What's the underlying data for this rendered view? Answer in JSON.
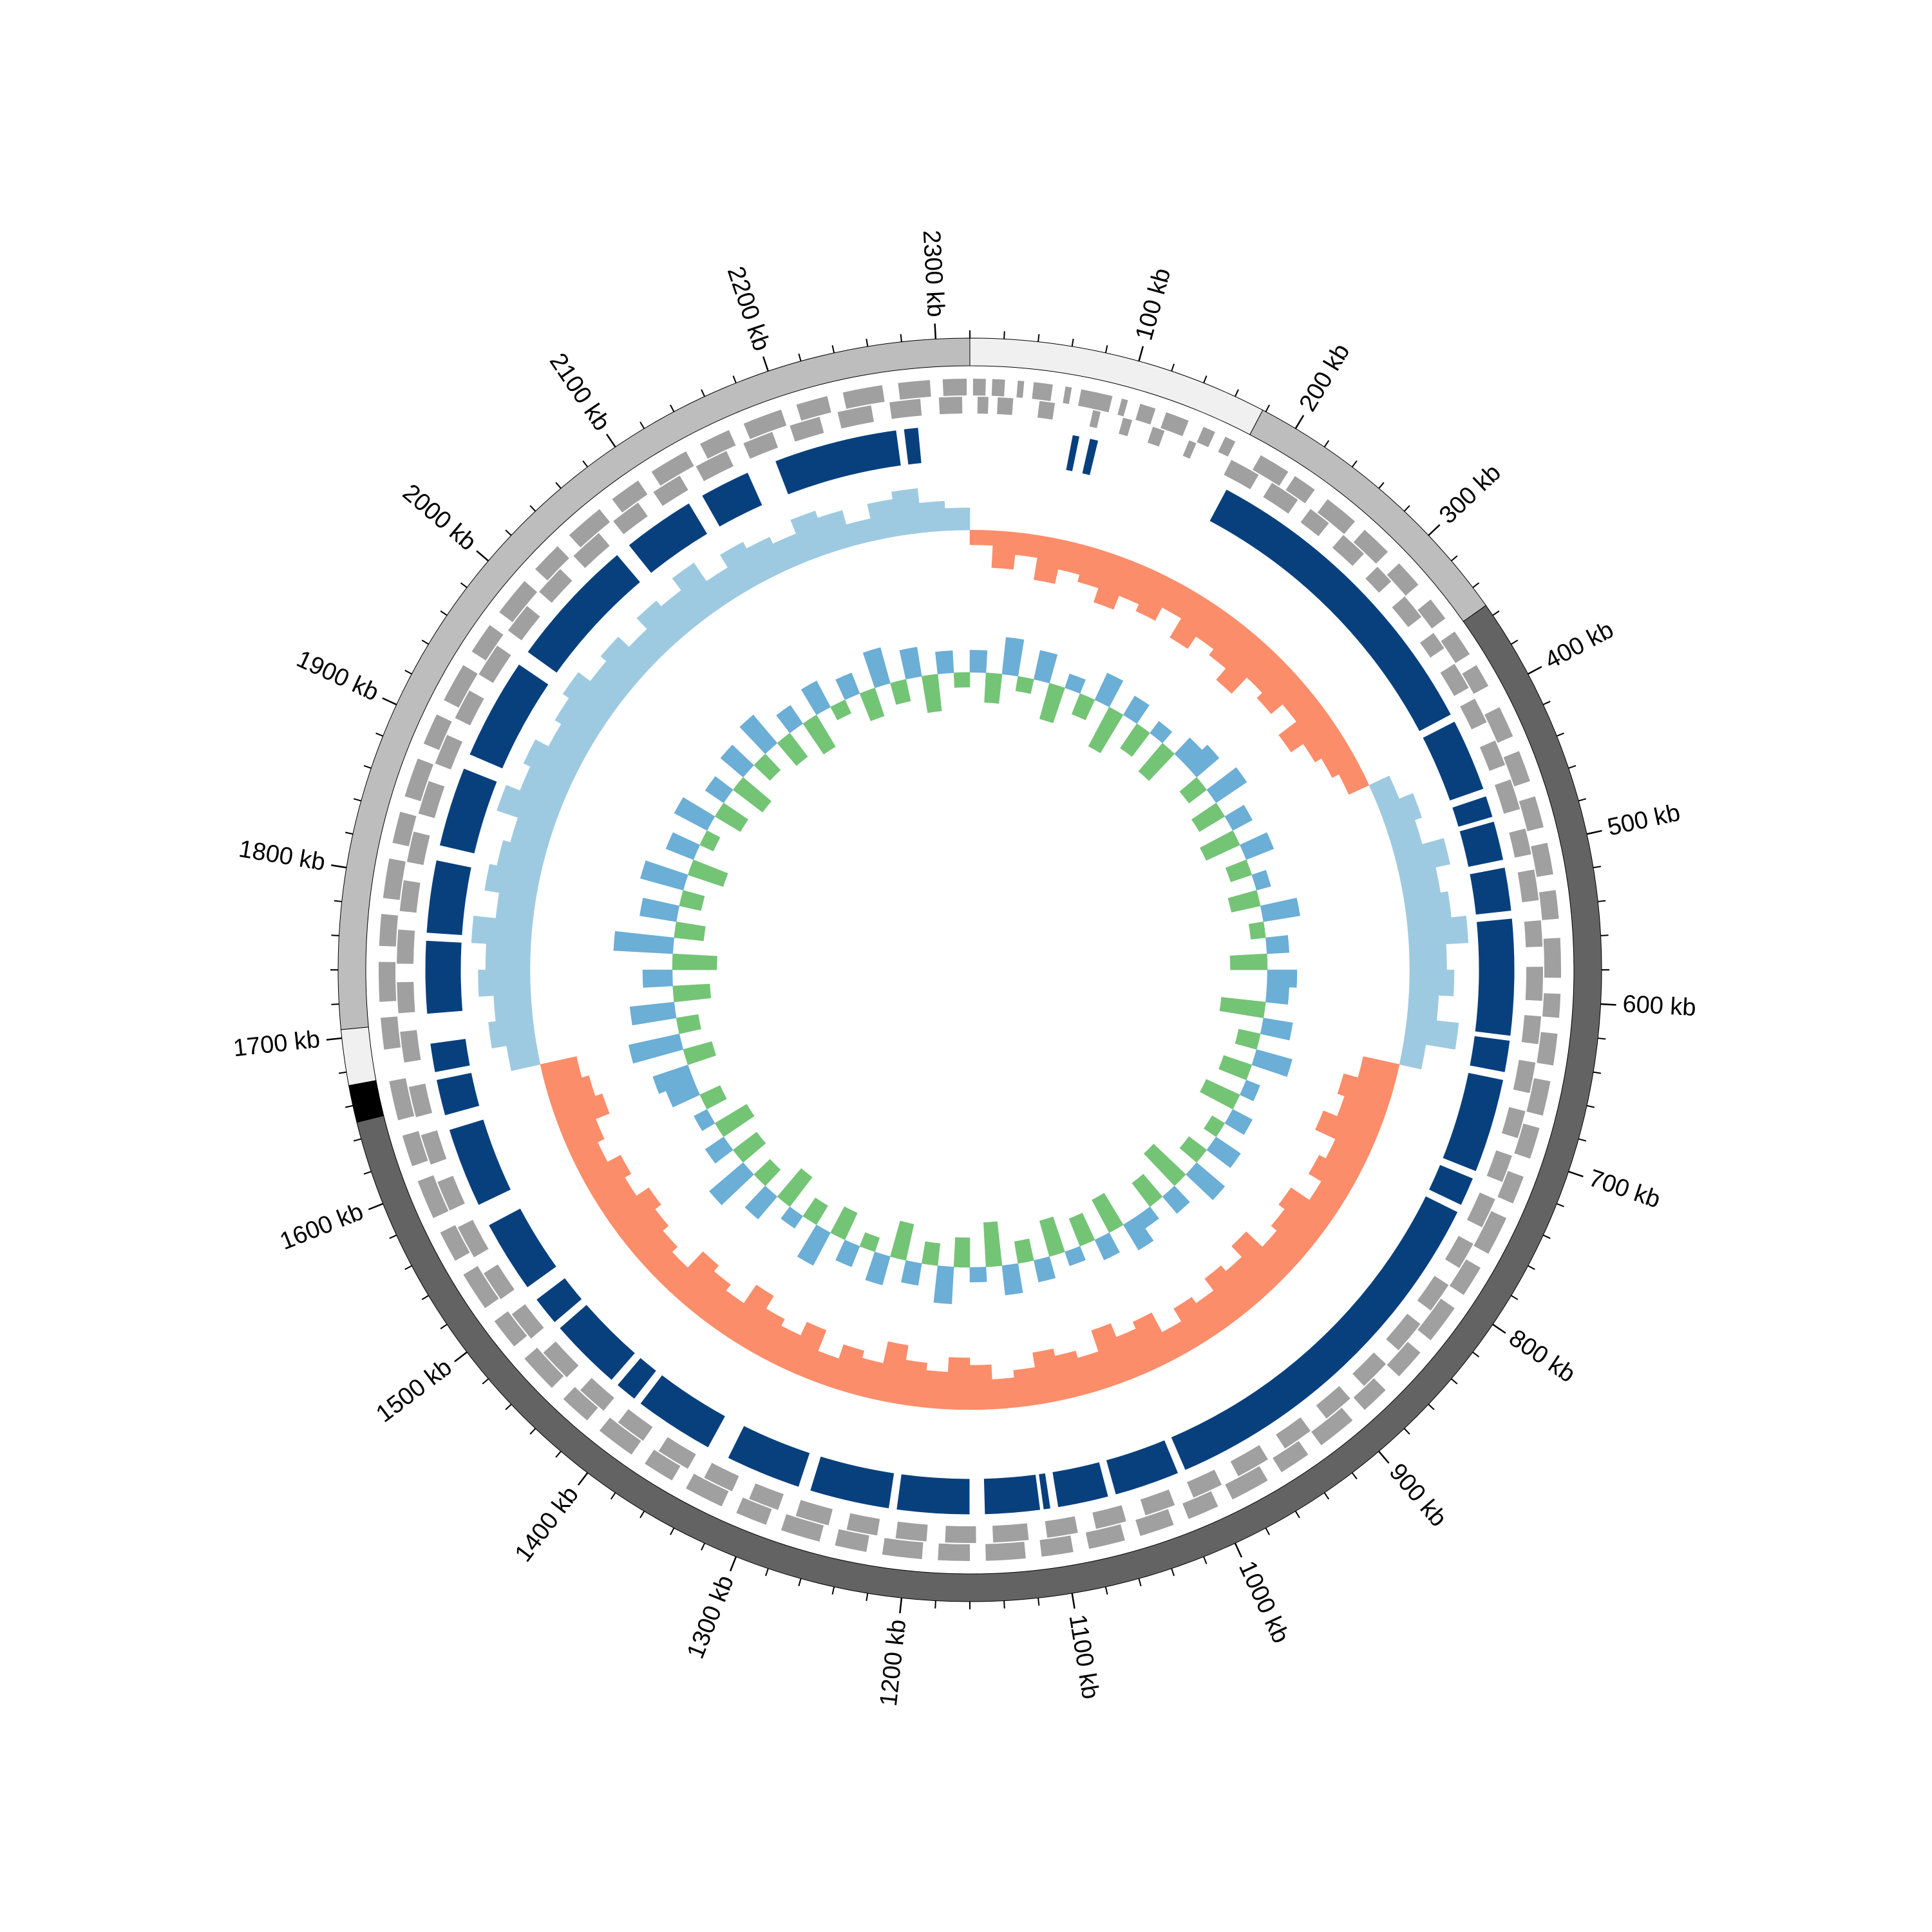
{
  "chart_data": {
    "type": "circular-genome",
    "xlim": [
      0,
      2320
    ],
    "xticks": [
      {
        "value": 100,
        "label": "100 kb"
      },
      {
        "value": 200,
        "label": "200 kb"
      },
      {
        "value": 300,
        "label": "300 kb"
      },
      {
        "value": 400,
        "label": "400 kb"
      },
      {
        "value": 500,
        "label": "500 kb"
      },
      {
        "value": 600,
        "label": "600 kb"
      },
      {
        "value": 700,
        "label": "700 kb"
      },
      {
        "value": 800,
        "label": "800 kb"
      },
      {
        "value": 900,
        "label": "900 kb"
      },
      {
        "value": 1000,
        "label": "1000 kb"
      },
      {
        "value": 1100,
        "label": "1100 kb"
      },
      {
        "value": 1200,
        "label": "1200 kb"
      },
      {
        "value": 1300,
        "label": "1300 kb"
      },
      {
        "value": 1400,
        "label": "1400 kb"
      },
      {
        "value": 1500,
        "label": "1500 kb"
      },
      {
        "value": 1600,
        "label": "1600 kb"
      },
      {
        "value": 1700,
        "label": "1700 kb"
      },
      {
        "value": 1800,
        "label": "1800 kb"
      },
      {
        "value": 1900,
        "label": "1900 kb"
      },
      {
        "value": 2000,
        "label": "2000 kb"
      },
      {
        "value": 2100,
        "label": "2100 kb"
      },
      {
        "value": 2200,
        "label": "2200 kb"
      },
      {
        "value": 2300,
        "label": "2300 kb"
      }
    ],
    "minor_ticks": [
      0,
      20,
      40,
      60,
      80,
      120,
      140,
      160,
      180,
      220,
      240,
      260,
      280,
      320,
      340,
      360,
      380,
      420,
      440,
      460,
      480,
      520,
      540,
      560,
      580,
      620,
      640,
      660,
      680,
      720,
      740,
      760,
      780,
      820,
      840,
      860,
      880,
      920,
      940,
      960,
      980,
      1020,
      1040,
      1060,
      1080,
      1120,
      1140,
      1160,
      1180,
      1220,
      1240,
      1260,
      1280,
      1320,
      1340,
      1360,
      1380,
      1420,
      1440,
      1460,
      1480,
      1520,
      1540,
      1560,
      1580,
      1620,
      1640,
      1660,
      1680,
      1720,
      1740,
      1760,
      1780,
      1820,
      1840,
      1860,
      1880,
      1920,
      1940,
      1960,
      1980,
      2020,
      2040,
      2060,
      2080,
      2120,
      2140,
      2160,
      2180,
      2220,
      2240,
      2260,
      2280
    ],
    "segments": [
      {
        "start": 0,
        "end": 178,
        "color": "#f0f0f0"
      },
      {
        "start": 178,
        "end": 353,
        "color": "#bdbdbd"
      },
      {
        "start": 353,
        "end": 1650,
        "color": "#636363"
      },
      {
        "start": 1650,
        "end": 1672,
        "color": "#000000"
      },
      {
        "start": 1672,
        "end": 1705,
        "color": "#f0f0f0"
      },
      {
        "start": 1705,
        "end": 2320,
        "color": "#bdbdbd"
      }
    ],
    "gene_color": "#a0a0a0",
    "genes_plus": [
      [
        2,
        10
      ],
      [
        14,
        22
      ],
      [
        30,
        34
      ],
      [
        40,
        52
      ],
      [
        60,
        64
      ],
      [
        70,
        90
      ],
      [
        96,
        100
      ],
      [
        108,
        118
      ],
      [
        125,
        140
      ],
      [
        150,
        158
      ],
      [
        165,
        172
      ],
      [
        190,
        210
      ],
      [
        215,
        230
      ],
      [
        240,
        262
      ],
      [
        270,
        290
      ],
      [
        300,
        318
      ],
      [
        330,
        345
      ],
      [
        355,
        372
      ],
      [
        380,
        395
      ],
      [
        410,
        430
      ],
      [
        440,
        460
      ],
      [
        470,
        490
      ],
      [
        500,
        520
      ],
      [
        530,
        548
      ],
      [
        560,
        585
      ],
      [
        595,
        610
      ],
      [
        620,
        640
      ],
      [
        650,
        672
      ],
      [
        680,
        700
      ],
      [
        712,
        730
      ],
      [
        740,
        765
      ],
      [
        775,
        795
      ],
      [
        805,
        830
      ],
      [
        840,
        860
      ],
      [
        872,
        890
      ],
      [
        900,
        925
      ],
      [
        935,
        955
      ],
      [
        965,
        990
      ],
      [
        1000,
        1020
      ],
      [
        1030,
        1052
      ],
      [
        1062,
        1085
      ],
      [
        1095,
        1115
      ],
      [
        1125,
        1150
      ],
      [
        1160,
        1180
      ],
      [
        1190,
        1215
      ],
      [
        1225,
        1245
      ],
      [
        1255,
        1280
      ],
      [
        1290,
        1310
      ],
      [
        1320,
        1345
      ],
      [
        1355,
        1375
      ],
      [
        1385,
        1410
      ],
      [
        1420,
        1440
      ],
      [
        1450,
        1475
      ],
      [
        1485,
        1505
      ],
      [
        1515,
        1540
      ],
      [
        1550,
        1570
      ],
      [
        1580,
        1605
      ],
      [
        1615,
        1635
      ],
      [
        1645,
        1670
      ],
      [
        1690,
        1710
      ],
      [
        1720,
        1745
      ],
      [
        1755,
        1775
      ],
      [
        1785,
        1810
      ],
      [
        1820,
        1840
      ],
      [
        1850,
        1875
      ],
      [
        1885,
        1905
      ],
      [
        1915,
        1940
      ],
      [
        1950,
        1970
      ],
      [
        1980,
        2005
      ],
      [
        2015,
        2035
      ],
      [
        2045,
        2070
      ],
      [
        2080,
        2100
      ],
      [
        2110,
        2135
      ],
      [
        2145,
        2165
      ],
      [
        2175,
        2200
      ],
      [
        2210,
        2230
      ],
      [
        2240,
        2265
      ],
      [
        2275,
        2295
      ],
      [
        2303,
        2318
      ]
    ],
    "genes_minus": [
      [
        5,
        12
      ],
      [
        18,
        28
      ],
      [
        45,
        55
      ],
      [
        80,
        85
      ],
      [
        100,
        106
      ],
      [
        120,
        128
      ],
      [
        145,
        150
      ],
      [
        175,
        195
      ],
      [
        205,
        225
      ],
      [
        235,
        250
      ],
      [
        262,
        280
      ],
      [
        292,
        305
      ],
      [
        318,
        335
      ],
      [
        348,
        360
      ],
      [
        372,
        390
      ],
      [
        398,
        415
      ],
      [
        428,
        445
      ],
      [
        455,
        475
      ],
      [
        488,
        505
      ],
      [
        515,
        535
      ],
      [
        548,
        565
      ],
      [
        578,
        600
      ],
      [
        610,
        628
      ],
      [
        640,
        660
      ],
      [
        672,
        690
      ],
      [
        702,
        720
      ],
      [
        732,
        752
      ],
      [
        764,
        782
      ],
      [
        795,
        815
      ],
      [
        826,
        848
      ],
      [
        860,
        880
      ],
      [
        892,
        912
      ],
      [
        925,
        945
      ],
      [
        958,
        980
      ],
      [
        992,
        1012
      ],
      [
        1025,
        1045
      ],
      [
        1058,
        1078
      ],
      [
        1090,
        1110
      ],
      [
        1122,
        1145
      ],
      [
        1156,
        1176
      ],
      [
        1188,
        1208
      ],
      [
        1220,
        1240
      ],
      [
        1252,
        1274
      ],
      [
        1286,
        1306
      ],
      [
        1318,
        1338
      ],
      [
        1350,
        1372
      ],
      [
        1384,
        1404
      ],
      [
        1416,
        1436
      ],
      [
        1448,
        1470
      ],
      [
        1482,
        1502
      ],
      [
        1514,
        1534
      ],
      [
        1546,
        1568
      ],
      [
        1580,
        1600
      ],
      [
        1612,
        1632
      ],
      [
        1644,
        1664
      ],
      [
        1680,
        1700
      ],
      [
        1712,
        1732
      ],
      [
        1744,
        1766
      ],
      [
        1778,
        1798
      ],
      [
        1810,
        1830
      ],
      [
        1842,
        1864
      ],
      [
        1876,
        1896
      ],
      [
        1908,
        1928
      ],
      [
        1940,
        1962
      ],
      [
        1974,
        1994
      ],
      [
        2006,
        2026
      ],
      [
        2038,
        2060
      ],
      [
        2072,
        2092
      ],
      [
        2104,
        2124
      ],
      [
        2136,
        2158
      ],
      [
        2170,
        2190
      ],
      [
        2202,
        2222
      ],
      [
        2234,
        2256
      ],
      [
        2268,
        2288
      ],
      [
        2300,
        2315
      ]
    ],
    "block_color": "#08407e",
    "blocks": [
      [
        70,
        75
      ],
      [
        82,
        88
      ],
      [
        181,
        400
      ],
      [
        405,
        455
      ],
      [
        460,
        475
      ],
      [
        478,
        505
      ],
      [
        510,
        540
      ],
      [
        545,
        625
      ],
      [
        628,
        650
      ],
      [
        655,
        720
      ],
      [
        725,
        745
      ],
      [
        750,
        1010
      ],
      [
        1015,
        1060
      ],
      [
        1065,
        1100
      ],
      [
        1105,
        1110
      ],
      [
        1112,
        1150
      ],
      [
        1160,
        1210
      ],
      [
        1215,
        1270
      ],
      [
        1278,
        1330
      ],
      [
        1345,
        1400
      ],
      [
        1405,
        1420
      ],
      [
        1425,
        1475
      ],
      [
        1480,
        1500
      ],
      [
        1510,
        1560
      ],
      [
        1575,
        1630
      ],
      [
        1640,
        1665
      ],
      [
        1670,
        1690
      ],
      [
        1710,
        1760
      ],
      [
        1765,
        1815
      ],
      [
        1825,
        1880
      ],
      [
        1890,
        1960
      ],
      [
        1970,
        2060
      ],
      [
        2070,
        2120
      ],
      [
        2130,
        2165
      ],
      [
        2185,
        2270
      ],
      [
        2275,
        2285
      ]
    ],
    "x": [
      0,
      20,
      40,
      60,
      80,
      100,
      120,
      140,
      160,
      180,
      200,
      220,
      240,
      260,
      280,
      300,
      320,
      340,
      360,
      380,
      400,
      420,
      440,
      460,
      480,
      500,
      520,
      540,
      560,
      580,
      600,
      620,
      640,
      660,
      680,
      700,
      720,
      740,
      760,
      780,
      800,
      820,
      840,
      860,
      880,
      900,
      920,
      940,
      960,
      980,
      1000,
      1020,
      1040,
      1060,
      1080,
      1100,
      1120,
      1140,
      1160,
      1180,
      1200,
      1220,
      1240,
      1260,
      1280,
      1300,
      1320,
      1340,
      1360,
      1380,
      1400,
      1420,
      1440,
      1460,
      1480,
      1500,
      1520,
      1540,
      1560,
      1580,
      1600,
      1620,
      1640,
      1660,
      1680,
      1700,
      1720,
      1740,
      1760,
      1780,
      1800,
      1820,
      1840,
      1860,
      1880,
      1900,
      1920,
      1940,
      1960,
      1980,
      2000,
      2020,
      2040,
      2060,
      2080,
      2100,
      2120,
      2140,
      2160,
      2180,
      2200,
      2220,
      2240,
      2260,
      2280,
      2300
    ],
    "ylim": [
      -0.1,
      0.1
    ],
    "tracks": [
      {
        "pos_color": "#9ecae1",
        "neg_color": "#fc8d6a",
        "values": [
          -0.02,
          -0.05,
          -0.03,
          -0.06,
          -0.04,
          -0.05,
          -0.07,
          -0.05,
          -0.06,
          -0.04,
          -0.07,
          -0.05,
          -0.06,
          -0.08,
          -0.05,
          -0.06,
          -0.04,
          -0.07,
          -0.05,
          -0.04,
          -0.03,
          0.03,
          0.05,
          0.04,
          0.07,
          0.05,
          0.06,
          0.08,
          0.05,
          0.06,
          0.04,
          0.07,
          0.03,
          -0.05,
          -0.07,
          -0.06,
          -0.08,
          -0.05,
          -0.06,
          -0.04,
          -0.07,
          -0.06,
          -0.05,
          -0.08,
          -0.06,
          -0.07,
          -0.05,
          -0.06,
          -0.04,
          -0.07,
          -0.06,
          -0.08,
          -0.05,
          -0.06,
          -0.07,
          -0.05,
          -0.04,
          -0.06,
          -0.07,
          -0.05,
          -0.06,
          -0.08,
          -0.05,
          -0.06,
          -0.04,
          -0.07,
          -0.05,
          -0.06,
          -0.08,
          -0.05,
          -0.06,
          -0.07,
          -0.04,
          -0.05,
          -0.06,
          -0.07,
          -0.05,
          -0.06,
          -0.04,
          -0.05,
          -0.07,
          -0.06,
          -0.05,
          0.04,
          0.06,
          0.05,
          0.07,
          0.06,
          0.08,
          0.05,
          0.07,
          0.06,
          0.05,
          0.08,
          0.06,
          0.07,
          0.05,
          0.06,
          0.07,
          0.05,
          0.06,
          0.04,
          0.06,
          0.05,
          0.07,
          0.04,
          0.06,
          0.05,
          0.04,
          0.06,
          0.05,
          0.03,
          0.05,
          0.06,
          0.04,
          0.03
        ]
      },
      {
        "pos_color": "#6baed6",
        "neg_color": "#74c476",
        "values": [
          0.03,
          -0.04,
          0.05,
          -0.02,
          0.04,
          -0.05,
          0.02,
          -0.03,
          0.04,
          -0.06,
          0.03,
          -0.04,
          0.02,
          -0.05,
          0.03,
          0.04,
          -0.03,
          0.05,
          -0.04,
          0.03,
          -0.05,
          0.04,
          -0.03,
          0.02,
          -0.04,
          0.05,
          -0.02,
          0.03,
          -0.05,
          0.04,
          0.03,
          -0.06,
          0.04,
          -0.03,
          0.05,
          -0.04,
          0.02,
          -0.05,
          0.03,
          -0.02,
          0.04,
          -0.03,
          0.05,
          -0.06,
          0.03,
          -0.04,
          0.02,
          0.04,
          -0.05,
          0.03,
          -0.04,
          0.02,
          -0.05,
          0.03,
          -0.03,
          0.04,
          -0.06,
          0.02,
          -0.04,
          0.05,
          -0.03,
          0.03,
          -0.05,
          0.04,
          -0.02,
          0.03,
          -0.04,
          0.05,
          -0.03,
          0.02,
          -0.05,
          0.04,
          -0.03,
          0.06,
          -0.04,
          0.03,
          -0.05,
          0.02,
          -0.03,
          0.04,
          0.05,
          -0.04,
          0.07,
          -0.03,
          0.06,
          -0.05,
          0.04,
          -0.06,
          0.08,
          -0.04,
          0.05,
          -0.03,
          0.06,
          -0.05,
          0.04,
          -0.02,
          0.05,
          -0.04,
          0.03,
          -0.05,
          0.04,
          -0.03,
          0.05,
          -0.04,
          0.03,
          -0.05,
          0.04,
          -0.02,
          0.03,
          -0.04,
          0.05,
          -0.03,
          0.04,
          -0.05,
          0.03,
          -0.02
        ]
      }
    ]
  }
}
